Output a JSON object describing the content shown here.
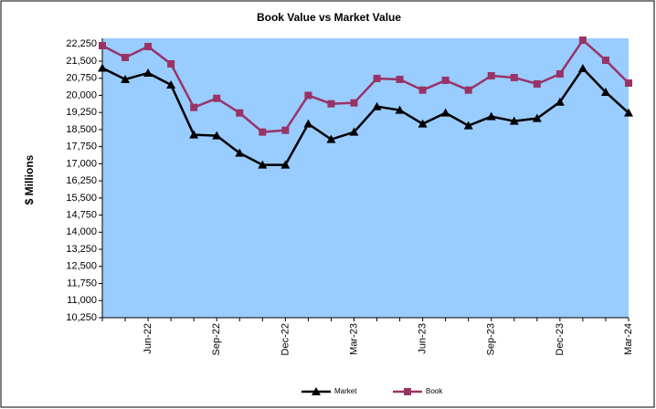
{
  "chart_data": {
    "type": "line",
    "title": "Book Value vs Market Value",
    "y_label": "$ Millions",
    "categories": [
      null,
      null,
      "Jun-22",
      null,
      null,
      "Sep-22",
      null,
      null,
      "Dec-22",
      null,
      null,
      "Mar-23",
      null,
      null,
      "Jun-23",
      null,
      null,
      "Sep-23",
      null,
      null,
      "Dec-23",
      null,
      null,
      "Mar-24"
    ],
    "series": [
      {
        "name": "Market",
        "color": "#000000",
        "marker": "triangle",
        "values": [
          21200,
          20700,
          20980,
          20460,
          18270,
          18230,
          17470,
          16950,
          16950,
          18750,
          18070,
          18390,
          19510,
          19350,
          18750,
          19230,
          18670,
          19070,
          18870,
          18990,
          19710,
          21180,
          20140,
          19230
        ]
      },
      {
        "name": "Book",
        "color": "#993366",
        "marker": "square",
        "values": [
          22180,
          21660,
          22140,
          21380,
          19470,
          19870,
          19230,
          18390,
          18470,
          20000,
          19630,
          19670,
          20740,
          20700,
          20230,
          20660,
          20230,
          20860,
          20780,
          20500,
          20940,
          22420,
          21540,
          20540
        ]
      }
    ],
    "ylim": [
      10250,
      22500
    ],
    "yticks": [
      {
        "value": 10250,
        "label": "10,250"
      },
      {
        "value": 11000,
        "label": "11,000"
      },
      {
        "value": 11750,
        "label": "11,750"
      },
      {
        "value": 12500,
        "label": "12,500"
      },
      {
        "value": 13250,
        "label": "13,250"
      },
      {
        "value": 14000,
        "label": "14,000"
      },
      {
        "value": 14750,
        "label": "14,750"
      },
      {
        "value": 15500,
        "label": "15,500"
      },
      {
        "value": 16250,
        "label": "16,250"
      },
      {
        "value": 17000,
        "label": "17,000"
      },
      {
        "value": 17750,
        "label": "17,750"
      },
      {
        "value": 18500,
        "label": "18,500"
      },
      {
        "value": 19250,
        "label": "19,250"
      },
      {
        "value": 20000,
        "label": "20,000"
      },
      {
        "value": 20750,
        "label": "20,750"
      },
      {
        "value": 21500,
        "label": "21,500"
      },
      {
        "value": 22250,
        "label": "22,250"
      }
    ],
    "plot_background": "#99ccff",
    "legend": "bottom"
  }
}
